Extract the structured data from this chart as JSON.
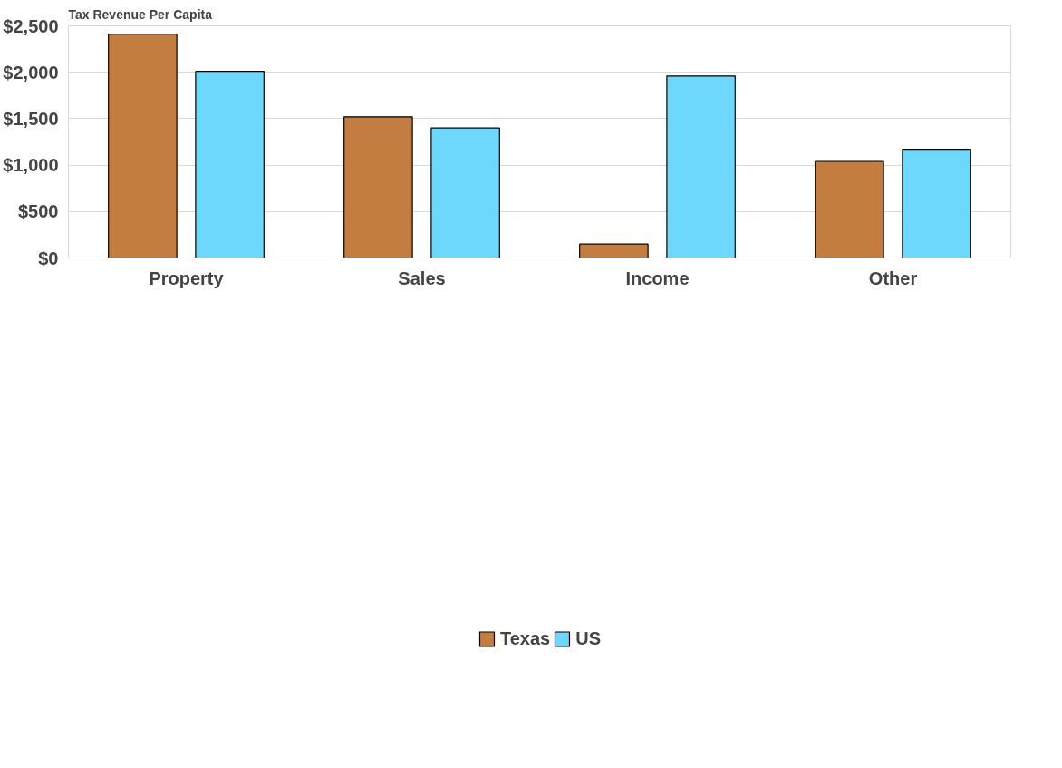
{
  "chart_data": {
    "type": "bar",
    "title": "Tax Revenue Per Capita",
    "categories": [
      "Property",
      "Sales",
      "Income",
      "Other"
    ],
    "series": [
      {
        "name": "Texas",
        "color": "#c47d41",
        "values": [
          2410,
          1520,
          150,
          1040
        ]
      },
      {
        "name": "US",
        "color": "#6dd8fc",
        "values": [
          2010,
          1400,
          1960,
          1170
        ]
      }
    ],
    "ylim": [
      0,
      2500
    ],
    "yticks": [
      {
        "value": 0,
        "label": "$0"
      },
      {
        "value": 500,
        "label": "$500"
      },
      {
        "value": 1000,
        "label": "$1,000"
      },
      {
        "value": 1500,
        "label": "$1,500"
      },
      {
        "value": 2000,
        "label": "$2,000"
      },
      {
        "value": 2500,
        "label": "$2,500"
      }
    ],
    "grid": "y",
    "legend": "bottom"
  }
}
